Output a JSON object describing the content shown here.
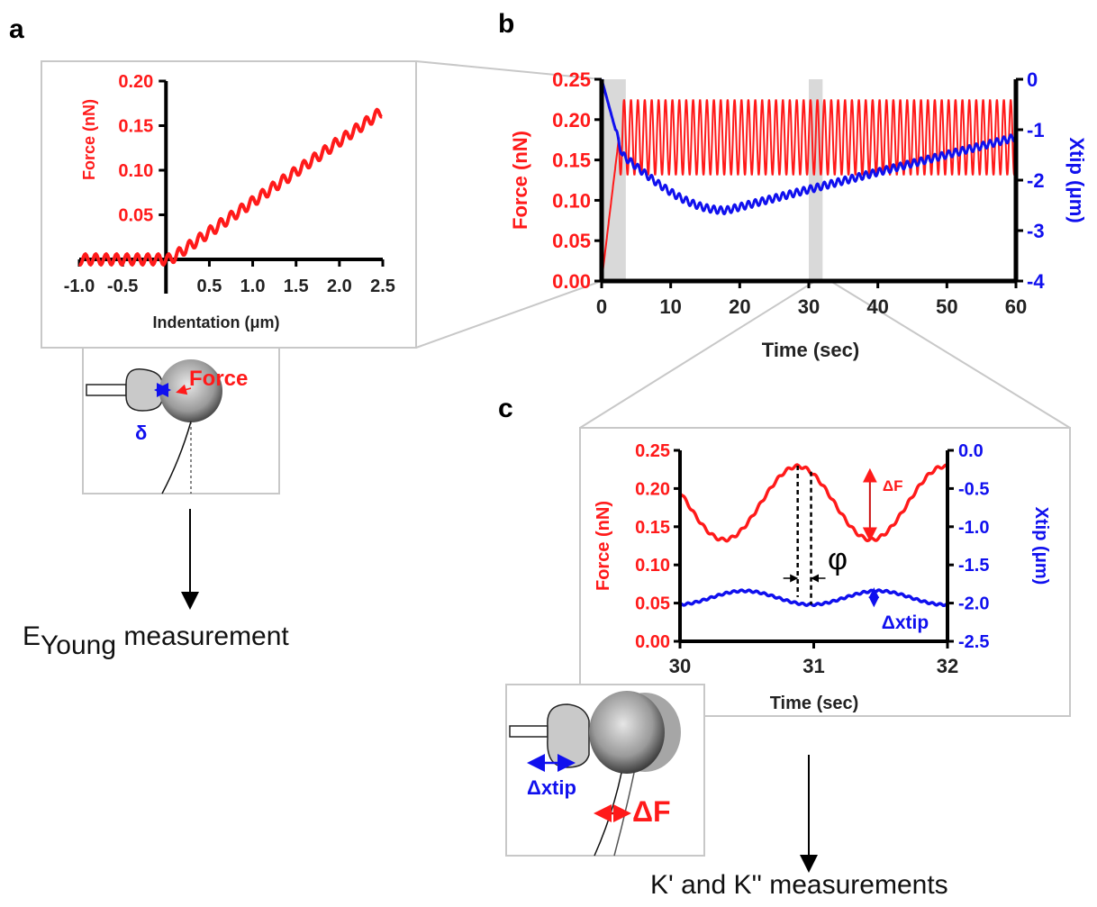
{
  "panels": {
    "a": "a",
    "b": "b",
    "c": "c"
  },
  "colors": {
    "force": "#ff1a1a",
    "xtip": "#1010ee",
    "axis": "#000000",
    "box": "#c8c8c8",
    "shade": "#d9d9d9"
  },
  "captions": {
    "a_prefix": "E",
    "a_sub": "Young",
    "a_suffix": " measurement",
    "c_text": "K' and K'' measurements"
  },
  "schematic_a": {
    "force_label": "Force",
    "delta_label": "δ"
  },
  "schematic_c": {
    "dxtip_label": "Δxtip",
    "dF_label": "ΔF"
  },
  "annotations": {
    "dF": "ΔF",
    "phi": "φ",
    "dxtip": "Δxtip"
  },
  "chart_data": [
    {
      "id": "a",
      "type": "scatter",
      "title": "",
      "xlabel": "Indentation (μm)",
      "ylabel": "Force (nN)",
      "xlim": [
        -1.0,
        2.5
      ],
      "ylim": [
        0,
        0.2
      ],
      "xticks": [
        -1.0,
        -0.5,
        0.5,
        1.0,
        1.5,
        2.0,
        2.5
      ],
      "xtick_labels": [
        "-1.0",
        "-0.5",
        "0.5",
        "1.0",
        "1.5",
        "2.0",
        "2.5"
      ],
      "yticks": [
        0.05,
        0.1,
        0.15,
        0.2
      ],
      "ytick_labels": [
        "0.05",
        "0.10",
        "0.15",
        "0.20"
      ],
      "series": [
        {
          "color": "#ff1a1a",
          "x_start": -1.0,
          "x_end": 2.5,
          "contact_x": 0.05,
          "slope": 0.068,
          "y_end": 0.17,
          "ripple_amp": 0.006,
          "ripple_period": 0.12
        }
      ],
      "grid": false
    },
    {
      "id": "b",
      "type": "line",
      "title": "",
      "xlabel": "Time (sec)",
      "ylabel": "Force (nN)",
      "ylabel_right": "Xtip (μm)",
      "xlim": [
        0,
        60
      ],
      "ylim": [
        0,
        0.25
      ],
      "ylim_right": [
        -4,
        0
      ],
      "xticks": [
        0,
        10,
        20,
        30,
        40,
        50,
        60
      ],
      "xtick_labels": [
        "0",
        "10",
        "20",
        "30",
        "40",
        "50",
        "60"
      ],
      "yticks": [
        0,
        0.05,
        0.1,
        0.15,
        0.2,
        0.25
      ],
      "ytick_labels": [
        "0.00",
        "0.05",
        "0.10",
        "0.15",
        "0.20",
        "0.25"
      ],
      "yticks_right": [
        0,
        -1,
        -2,
        -3,
        -4
      ],
      "ytick_labels_right": [
        "0",
        "-1",
        "-2",
        "-3",
        "-4"
      ],
      "highlight_ranges": [
        [
          0,
          3.5
        ],
        [
          30,
          32
        ]
      ],
      "series": [
        {
          "name": "Force",
          "axis": "left",
          "color": "#ff1a1a",
          "ramp_end_t": 2.5,
          "mean": 0.178,
          "amplitude": 0.047,
          "frequency_hz": 1.0
        },
        {
          "name": "Xtip",
          "axis": "right",
          "color": "#1010ee",
          "start": 0.0,
          "drop_to": -1.5,
          "min": -2.6,
          "min_t": 18,
          "end": -1.15,
          "amplitude": 0.07,
          "frequency_hz": 1.0
        }
      ],
      "grid": false
    },
    {
      "id": "c",
      "type": "line",
      "title": "",
      "xlabel": "Time (sec)",
      "ylabel": "Force (nN)",
      "ylabel_right": "Xtip (μm)",
      "xlim": [
        30,
        32
      ],
      "ylim": [
        0,
        0.25
      ],
      "ylim_right": [
        -2.5,
        0
      ],
      "xticks": [
        30,
        31,
        32
      ],
      "xtick_labels": [
        "30",
        "31",
        "32"
      ],
      "yticks": [
        0,
        0.05,
        0.1,
        0.15,
        0.2,
        0.25
      ],
      "ytick_labels": [
        "0.00",
        "0.05",
        "0.10",
        "0.15",
        "0.20",
        "0.25"
      ],
      "yticks_right": [
        0,
        -0.5,
        -1.0,
        -1.5,
        -2.0,
        -2.5
      ],
      "ytick_labels_right": [
        "0.0",
        "-0.5",
        "-1.0",
        "-1.5",
        "-2.0",
        "-2.5"
      ],
      "phase_lines_x": [
        30.88,
        30.98
      ],
      "series": [
        {
          "name": "Force",
          "axis": "left",
          "color": "#ff1a1a",
          "mean": 0.181,
          "amplitude": 0.048,
          "peak_t": 30.88,
          "period": 1.1
        },
        {
          "name": "Xtip",
          "axis": "right",
          "color": "#1010ee",
          "mean": -1.93,
          "amplitude": 0.09,
          "trough_t": 30.98,
          "period": 1.0
        }
      ],
      "grid": false
    }
  ]
}
